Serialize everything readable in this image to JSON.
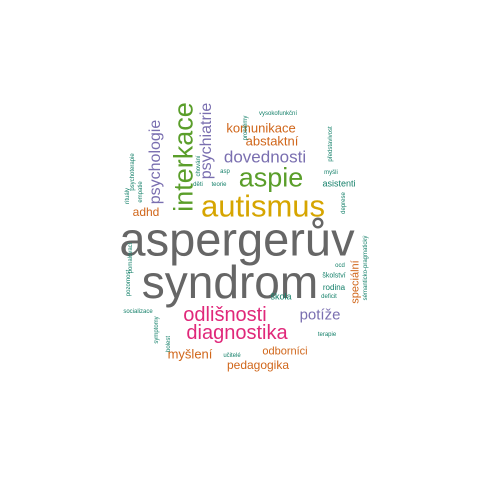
{
  "palette": {
    "gray": "#666666",
    "gold": "#d6a500",
    "green": "#5a9e2a",
    "purple": "#7a6fb0",
    "magenta": "#e0287a",
    "orange": "#d0661a",
    "teal": "#15806a"
  },
  "words": [
    {
      "text": "aspergerův",
      "color": "gray"
    },
    {
      "text": "syndrom",
      "color": "gray"
    },
    {
      "text": "autismus",
      "color": "gold"
    },
    {
      "text": "aspie",
      "color": "green"
    },
    {
      "text": "interkace",
      "color": "green"
    },
    {
      "text": "psychiatrie",
      "color": "purple"
    },
    {
      "text": "psychologie",
      "color": "purple"
    },
    {
      "text": "dovednosti",
      "color": "purple"
    },
    {
      "text": "komunikace",
      "color": "orange"
    },
    {
      "text": "abstaktní",
      "color": "orange"
    },
    {
      "text": "odlišnosti",
      "color": "magenta"
    },
    {
      "text": "diagnostika",
      "color": "magenta"
    },
    {
      "text": "potíže",
      "color": "purple"
    },
    {
      "text": "myšlení",
      "color": "orange"
    },
    {
      "text": "pedagogika",
      "color": "orange"
    },
    {
      "text": "odborníci",
      "color": "orange"
    },
    {
      "text": "adhd",
      "color": "orange"
    },
    {
      "text": "speciální",
      "color": "orange"
    },
    {
      "text": "asistenti",
      "color": "teal"
    },
    {
      "text": "škola",
      "color": "teal"
    },
    {
      "text": "rodina",
      "color": "teal"
    },
    {
      "text": "deficit",
      "color": "teal"
    },
    {
      "text": "ocd",
      "color": "teal"
    },
    {
      "text": "školství",
      "color": "teal"
    },
    {
      "text": "terapie",
      "color": "teal"
    },
    {
      "text": "učitelé",
      "color": "teal"
    },
    {
      "text": "děti",
      "color": "teal"
    },
    {
      "text": "teorie",
      "color": "teal"
    },
    {
      "text": "myšli",
      "color": "teal"
    },
    {
      "text": "vysokofunkční",
      "color": "teal"
    },
    {
      "text": "problémy",
      "color": "teal"
    },
    {
      "text": "představivost",
      "color": "teal"
    },
    {
      "text": "deprese",
      "color": "teal"
    },
    {
      "text": "pozornost",
      "color": "teal"
    },
    {
      "text": "socializace",
      "color": "teal"
    },
    {
      "text": "symptomy",
      "color": "teal"
    },
    {
      "text": "rituály",
      "color": "teal"
    },
    {
      "text": "psychoterapie",
      "color": "teal"
    },
    {
      "text": "empatie",
      "color": "teal"
    },
    {
      "text": "asp",
      "color": "teal"
    },
    {
      "text": "chování",
      "color": "teal"
    },
    {
      "text": "sémanticko-pragmatický",
      "color": "teal"
    },
    {
      "text": "pomalovací",
      "color": "teal"
    },
    {
      "text": "bolest",
      "color": "teal"
    }
  ]
}
